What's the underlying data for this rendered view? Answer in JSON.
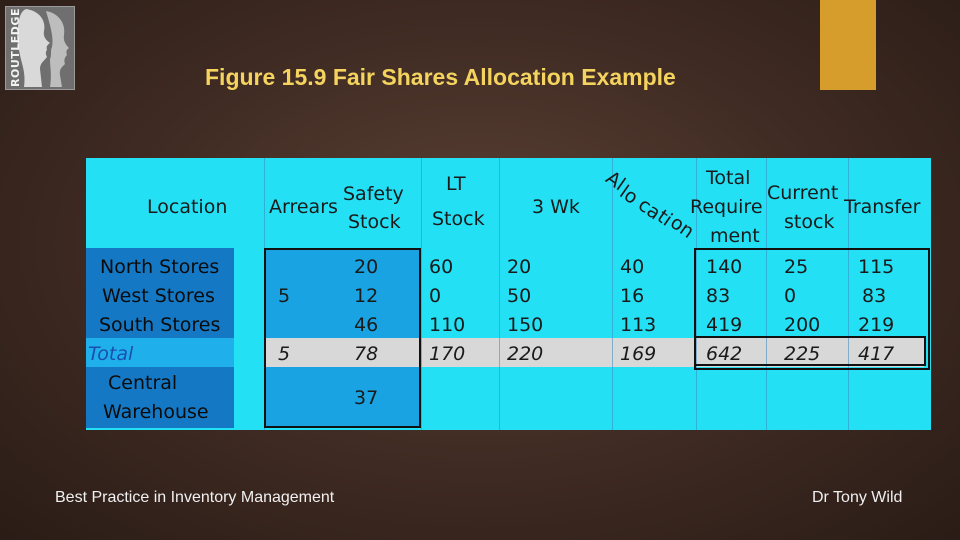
{
  "logo": {
    "text": "ROUTLEDGE"
  },
  "title": "Figure 15.9  Fair Shares Allocation Example",
  "footer": {
    "left": "Best Practice in Inventory Management",
    "right": "Dr Tony Wild"
  },
  "colors": {
    "title": "#f4d35e",
    "accent": "#d69d2c",
    "table_bg": "#23e0f5",
    "row_dark": "#1578c4",
    "total_band": "#d8d8d8"
  },
  "table": {
    "headers": {
      "location": "Location",
      "arrears": "Arrears",
      "safety_1": "Safety",
      "safety_2": "Stock",
      "lt_1": "LT",
      "lt_2": "Stock",
      "wk": "3 Wk",
      "alloc_1": "Al",
      "alloc_2": "lo",
      "alloc_3": "ca",
      "alloc_4": "ti",
      "alloc_5": "on",
      "total_1": "Total",
      "total_2": "Require",
      "total_3": "ment",
      "current_1": "Current",
      "current_2": "stock",
      "transfer": "Transfer"
    },
    "rows": [
      {
        "location": "North Stores",
        "arrears": "",
        "safety": "20",
        "lt": "60",
        "wk": "20",
        "alloc": "40",
        "total": "140",
        "current": "25",
        "transfer": "115"
      },
      {
        "location": "West Stores",
        "arrears": "5",
        "safety": "12",
        "lt": "0",
        "wk": "50",
        "alloc": "16",
        "total": "83",
        "current": "0",
        "transfer": "83"
      },
      {
        "location": "South Stores",
        "arrears": "",
        "safety": "46",
        "lt": "110",
        "wk": "150",
        "alloc": "113",
        "total": "419",
        "current": "200",
        "transfer": "219"
      },
      {
        "location": "Total",
        "arrears": "5",
        "safety": "78",
        "lt": "170",
        "wk": "220",
        "alloc": "169",
        "total": "642",
        "current": "225",
        "transfer": "417"
      }
    ],
    "central": {
      "line1": "Central",
      "line2": "Warehouse",
      "safety": "37"
    }
  }
}
